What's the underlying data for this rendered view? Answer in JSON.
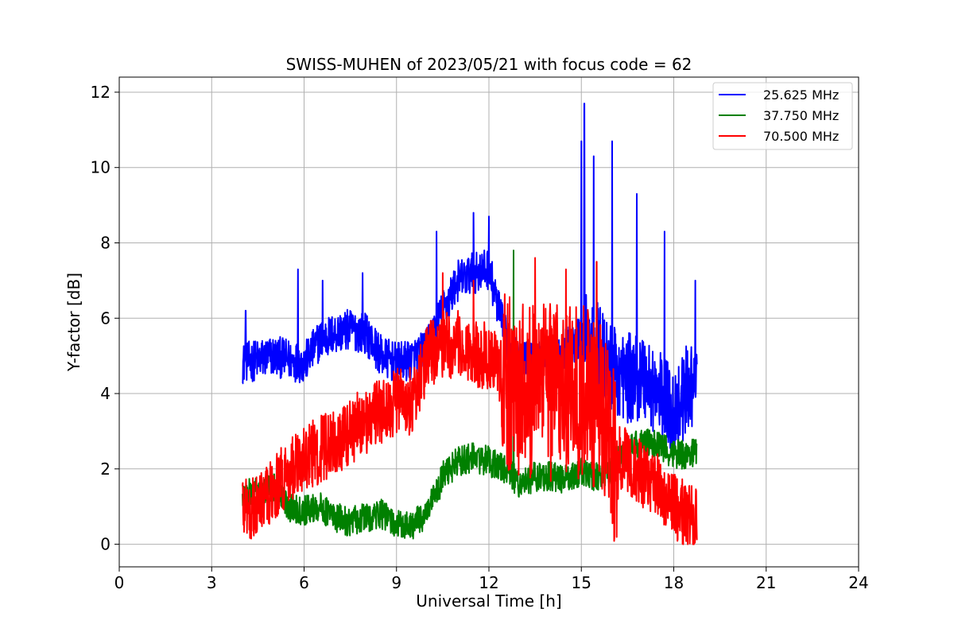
{
  "chart_data": {
    "type": "line",
    "title": "SWISS-MUHEN of 2023/05/21 with focus code = 62",
    "xlabel": "Universal Time [h]",
    "ylabel": "Y-factor [dB]",
    "xlim": [
      0,
      24
    ],
    "ylim": [
      -0.6,
      12.4
    ],
    "xticks": [
      0,
      3,
      6,
      9,
      12,
      15,
      18,
      21,
      24
    ],
    "yticks": [
      0,
      2,
      4,
      6,
      8,
      10,
      12
    ],
    "xtick_labels": [
      "0",
      "3",
      "6",
      "9",
      "12",
      "15",
      "18",
      "21",
      "24"
    ],
    "ytick_labels": [
      "0",
      "2",
      "4",
      "6",
      "8",
      "10",
      "12"
    ],
    "grid": true,
    "legend_position": "top-right",
    "series": [
      {
        "name": "25.625 MHz",
        "color": "#0000ff",
        "x": [
          4.0,
          4.5,
          5.0,
          5.5,
          6.0,
          6.5,
          7.0,
          7.5,
          8.0,
          8.5,
          9.0,
          9.5,
          10.0,
          10.5,
          11.0,
          11.5,
          12.0,
          12.5,
          13.0,
          13.5,
          14.0,
          14.5,
          15.0,
          15.5,
          16.0,
          16.5,
          17.0,
          17.5,
          18.0,
          18.5,
          18.75
        ],
        "y": [
          4.8,
          4.9,
          5.0,
          4.9,
          4.8,
          5.4,
          5.6,
          5.7,
          5.6,
          5.0,
          4.8,
          4.9,
          5.2,
          6.2,
          7.0,
          7.2,
          7.3,
          5.6,
          4.8,
          4.9,
          4.8,
          5.2,
          5.5,
          5.3,
          4.6,
          4.4,
          4.5,
          4.0,
          3.5,
          4.2,
          4.5
        ],
        "spikes": [
          [
            4.1,
            6.2
          ],
          [
            5.8,
            7.3
          ],
          [
            6.6,
            7.0
          ],
          [
            7.9,
            7.2
          ],
          [
            10.3,
            8.3
          ],
          [
            11.5,
            8.8
          ],
          [
            12.0,
            8.7
          ],
          [
            15.0,
            10.7
          ],
          [
            15.1,
            11.7
          ],
          [
            15.4,
            10.3
          ],
          [
            16.0,
            10.7
          ],
          [
            16.8,
            9.3
          ],
          [
            17.7,
            8.3
          ],
          [
            18.7,
            7.0
          ]
        ]
      },
      {
        "name": "37.750 MHz",
        "color": "#008000",
        "x": [
          4.0,
          4.5,
          5.0,
          5.5,
          6.0,
          6.5,
          7.0,
          7.5,
          8.0,
          8.5,
          9.0,
          9.5,
          10.0,
          10.5,
          11.0,
          11.5,
          12.0,
          12.5,
          13.0,
          13.5,
          14.0,
          14.5,
          15.0,
          15.5,
          16.0,
          16.5,
          17.0,
          17.5,
          18.0,
          18.5,
          18.75
        ],
        "y": [
          1.3,
          1.4,
          1.5,
          1.0,
          0.9,
          1.0,
          0.7,
          0.6,
          0.7,
          0.8,
          0.5,
          0.5,
          0.8,
          1.8,
          2.2,
          2.3,
          2.2,
          2.0,
          1.6,
          1.8,
          1.8,
          1.7,
          1.9,
          1.8,
          2.0,
          2.5,
          2.7,
          2.6,
          2.4,
          2.4,
          2.5
        ],
        "spikes": [
          [
            12.8,
            7.8
          ],
          [
            10.4,
            1.2
          ]
        ]
      },
      {
        "name": "70.500 MHz",
        "color": "#ff0000",
        "x": [
          4.0,
          4.5,
          5.0,
          5.5,
          6.0,
          6.5,
          7.0,
          7.5,
          8.0,
          8.5,
          9.0,
          9.5,
          10.0,
          10.5,
          11.0,
          11.5,
          12.0,
          12.5,
          13.0,
          13.5,
          14.0,
          14.5,
          15.0,
          15.5,
          16.0,
          16.5,
          17.0,
          17.5,
          18.0,
          18.5,
          18.75
        ],
        "y": [
          1.0,
          1.0,
          1.4,
          2.0,
          2.3,
          2.5,
          2.7,
          3.0,
          3.3,
          3.5,
          3.8,
          3.8,
          5.0,
          5.3,
          5.3,
          5.0,
          5.0,
          4.5,
          4.0,
          4.2,
          4.0,
          4.2,
          4.0,
          3.8,
          2.5,
          2.2,
          1.8,
          1.5,
          1.0,
          0.8,
          0.7
        ],
        "spikes": [
          [
            10.5,
            7.2
          ],
          [
            11.5,
            7.0
          ],
          [
            13.5,
            7.6
          ],
          [
            14.5,
            7.3
          ],
          [
            15.5,
            7.5
          ]
        ]
      }
    ]
  }
}
